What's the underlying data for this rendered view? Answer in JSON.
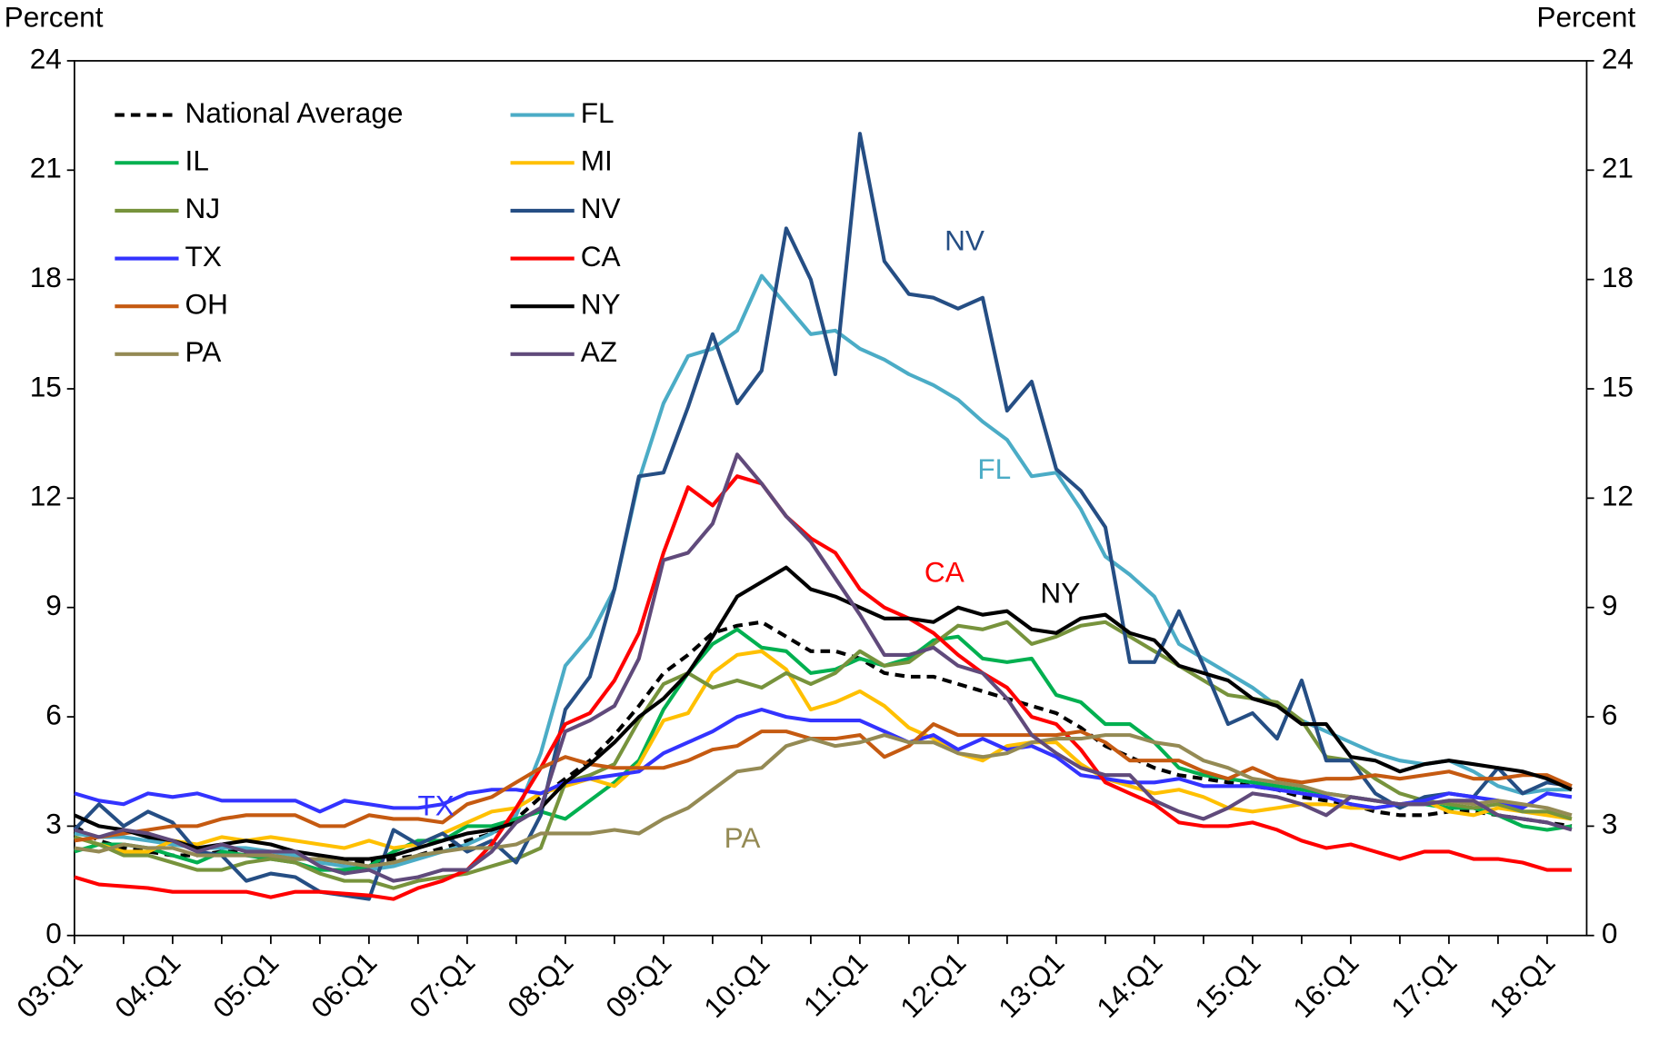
{
  "chart_data": {
    "type": "line",
    "y_label": "Percent",
    "y2_label": "Percent",
    "ylim": [
      0,
      24
    ],
    "yticks": [
      0,
      3,
      6,
      9,
      12,
      15,
      18,
      21,
      24
    ],
    "y2lim": [
      0,
      24
    ],
    "y2ticks": [
      0,
      3,
      6,
      9,
      12,
      15,
      18,
      21,
      24
    ],
    "grid": false,
    "legend": "upper left",
    "categories": [
      "03:Q1",
      null,
      null,
      null,
      "04:Q1",
      null,
      null,
      null,
      "05:Q1",
      null,
      null,
      null,
      "06:Q1",
      null,
      null,
      null,
      "07:Q1",
      null,
      null,
      null,
      "08:Q1",
      null,
      null,
      null,
      "09:Q1",
      null,
      null,
      null,
      "10:Q1",
      null,
      null,
      null,
      "11:Q1",
      null,
      null,
      null,
      "12:Q1",
      null,
      null,
      null,
      "13:Q1",
      null,
      null,
      null,
      "14:Q1",
      null,
      null,
      null,
      "15:Q1",
      null,
      null,
      null,
      "16:Q1",
      null,
      null,
      null,
      "17:Q1",
      null,
      null,
      null,
      "18:Q1",
      null
    ],
    "series": [
      {
        "name": "National Average",
        "color": "#000000",
        "dashed": true,
        "values": [
          3.0,
          2.6,
          2.4,
          2.3,
          2.2,
          2.2,
          2.3,
          2.3,
          2.2,
          2.1,
          2.1,
          2.0,
          2.0,
          2.1,
          2.2,
          2.4,
          2.6,
          2.8,
          3.2,
          3.8,
          4.3,
          4.8,
          5.5,
          6.3,
          7.2,
          7.7,
          8.3,
          8.5,
          8.6,
          8.2,
          7.8,
          7.8,
          7.6,
          7.2,
          7.1,
          7.1,
          6.9,
          6.7,
          6.5,
          6.3,
          6.1,
          5.7,
          5.2,
          4.9,
          4.6,
          4.4,
          4.3,
          4.2,
          4.1,
          4.0,
          3.8,
          3.7,
          3.6,
          3.4,
          3.3,
          3.3,
          3.4,
          3.4,
          3.3,
          3.2,
          3.1,
          3.0
        ]
      },
      {
        "name": "FL",
        "color": "#4bacc6",
        "values": [
          2.8,
          2.7,
          2.7,
          2.6,
          2.5,
          2.4,
          2.4,
          2.4,
          2.3,
          2.2,
          2.0,
          1.9,
          1.8,
          1.9,
          2.1,
          2.3,
          2.5,
          2.8,
          3.3,
          5.0,
          7.4,
          8.2,
          9.5,
          12.5,
          14.6,
          15.9,
          16.1,
          16.6,
          18.1,
          17.3,
          16.5,
          16.6,
          16.1,
          15.8,
          15.4,
          15.1,
          14.7,
          14.1,
          13.6,
          12.6,
          12.7,
          11.7,
          10.4,
          9.9,
          9.3,
          8.0,
          7.6,
          7.2,
          6.8,
          6.3,
          5.9,
          5.6,
          5.3,
          5.0,
          4.8,
          4.7,
          4.8,
          4.5,
          4.1,
          3.9,
          4.0,
          4.0
        ]
      },
      {
        "name": "IL",
        "color": "#00b050",
        "values": [
          2.3,
          2.5,
          2.5,
          2.4,
          2.2,
          2.0,
          2.3,
          2.2,
          2.1,
          2.0,
          1.8,
          1.8,
          1.9,
          2.3,
          2.6,
          2.6,
          3.0,
          3.0,
          3.2,
          3.4,
          3.2,
          3.7,
          4.2,
          4.8,
          6.2,
          7.2,
          8.0,
          8.4,
          7.9,
          7.8,
          7.2,
          7.3,
          7.6,
          7.4,
          7.6,
          8.1,
          8.2,
          7.6,
          7.5,
          7.6,
          6.6,
          6.4,
          5.8,
          5.8,
          5.3,
          4.6,
          4.4,
          4.3,
          4.2,
          4.1,
          4.0,
          3.9,
          3.8,
          3.7,
          3.6,
          3.6,
          3.5,
          3.5,
          3.3,
          3.0,
          2.9,
          3.0
        ]
      },
      {
        "name": "MI",
        "color": "#ffc000",
        "values": [
          2.7,
          2.5,
          2.3,
          2.3,
          2.6,
          2.5,
          2.7,
          2.6,
          2.7,
          2.6,
          2.5,
          2.4,
          2.6,
          2.4,
          2.5,
          2.8,
          3.1,
          3.4,
          3.5,
          3.9,
          4.1,
          4.3,
          4.1,
          4.7,
          5.9,
          6.1,
          7.2,
          7.7,
          7.8,
          7.3,
          6.2,
          6.4,
          6.7,
          6.3,
          5.7,
          5.4,
          5.0,
          4.8,
          5.2,
          5.3,
          5.3,
          4.7,
          4.3,
          4.1,
          3.9,
          4.0,
          3.8,
          3.5,
          3.4,
          3.5,
          3.6,
          3.6,
          3.5,
          3.5,
          3.6,
          3.7,
          3.4,
          3.3,
          3.5,
          3.4,
          3.3,
          3.2
        ]
      },
      {
        "name": "NJ",
        "color": "#77933c",
        "values": [
          2.7,
          2.5,
          2.2,
          2.2,
          2.0,
          1.8,
          1.8,
          2.0,
          2.1,
          2.0,
          1.7,
          1.5,
          1.5,
          1.3,
          1.5,
          1.6,
          1.7,
          1.9,
          2.1,
          2.4,
          4.2,
          4.4,
          4.7,
          5.9,
          6.9,
          7.2,
          6.8,
          7.0,
          6.8,
          7.2,
          6.9,
          7.2,
          7.8,
          7.4,
          7.5,
          8.0,
          8.5,
          8.4,
          8.6,
          8.0,
          8.2,
          8.5,
          8.6,
          8.2,
          7.8,
          7.4,
          7.0,
          6.6,
          6.5,
          6.4,
          5.9,
          4.9,
          4.8,
          4.3,
          3.9,
          3.7,
          3.6,
          3.5,
          3.6,
          3.4,
          3.4,
          3.2
        ]
      },
      {
        "name": "NV",
        "color": "#254e84",
        "values": [
          2.9,
          3.6,
          3.0,
          3.4,
          3.1,
          2.3,
          2.2,
          1.5,
          1.7,
          1.6,
          1.2,
          1.1,
          1.0,
          2.9,
          2.5,
          2.8,
          2.3,
          2.6,
          2.0,
          3.3,
          6.2,
          7.1,
          9.5,
          12.6,
          12.7,
          14.5,
          16.5,
          14.6,
          15.5,
          19.4,
          18.0,
          15.4,
          22.0,
          18.5,
          17.6,
          17.5,
          17.2,
          17.5,
          14.4,
          15.2,
          12.8,
          12.2,
          11.2,
          7.5,
          7.5,
          8.9,
          7.4,
          5.8,
          6.1,
          5.4,
          7.0,
          4.8,
          4.8,
          3.9,
          3.5,
          3.8,
          3.9,
          3.8,
          4.6,
          3.9,
          4.2,
          4.1
        ]
      },
      {
        "name": "TX",
        "color": "#3333ff",
        "values": [
          3.9,
          3.7,
          3.6,
          3.9,
          3.8,
          3.9,
          3.7,
          3.7,
          3.7,
          3.7,
          3.4,
          3.7,
          3.6,
          3.5,
          3.5,
          3.6,
          3.9,
          4.0,
          4.0,
          3.9,
          4.2,
          4.3,
          4.4,
          4.5,
          5.0,
          5.3,
          5.6,
          6.0,
          6.2,
          6.0,
          5.9,
          5.9,
          5.9,
          5.6,
          5.3,
          5.5,
          5.1,
          5.4,
          5.1,
          5.2,
          4.9,
          4.4,
          4.3,
          4.2,
          4.2,
          4.3,
          4.1,
          4.1,
          4.1,
          4.0,
          3.9,
          3.8,
          3.6,
          3.5,
          3.6,
          3.7,
          3.9,
          3.8,
          3.7,
          3.5,
          3.9,
          3.8
        ]
      },
      {
        "name": "CA",
        "color": "#ff0000",
        "values": [
          1.6,
          1.4,
          1.35,
          1.3,
          1.2,
          1.2,
          1.2,
          1.2,
          1.05,
          1.2,
          1.2,
          1.15,
          1.1,
          1.0,
          1.3,
          1.5,
          1.8,
          2.5,
          3.5,
          4.6,
          5.8,
          6.1,
          7.0,
          8.3,
          10.5,
          12.3,
          11.8,
          12.6,
          12.4,
          11.5,
          10.9,
          10.5,
          9.5,
          9.0,
          8.7,
          8.3,
          7.7,
          7.2,
          6.8,
          6.0,
          5.8,
          5.1,
          4.2,
          3.9,
          3.6,
          3.1,
          3.0,
          3.0,
          3.1,
          2.9,
          2.6,
          2.4,
          2.5,
          2.3,
          2.1,
          2.3,
          2.3,
          2.1,
          2.1,
          2.0,
          1.8,
          1.8
        ]
      },
      {
        "name": "OH",
        "color": "#c55a11",
        "values": [
          2.6,
          2.7,
          2.8,
          2.9,
          3.0,
          3.0,
          3.2,
          3.3,
          3.3,
          3.3,
          3.0,
          3.0,
          3.3,
          3.2,
          3.2,
          3.1,
          3.6,
          3.8,
          4.2,
          4.6,
          4.9,
          4.7,
          4.6,
          4.6,
          4.6,
          4.8,
          5.1,
          5.2,
          5.6,
          5.6,
          5.4,
          5.4,
          5.5,
          4.9,
          5.2,
          5.8,
          5.5,
          5.5,
          5.5,
          5.5,
          5.5,
          5.6,
          5.3,
          4.8,
          4.8,
          4.8,
          4.5,
          4.3,
          4.6,
          4.3,
          4.2,
          4.3,
          4.3,
          4.4,
          4.3,
          4.4,
          4.5,
          4.3,
          4.3,
          4.4,
          4.4,
          4.1
        ]
      },
      {
        "name": "NY",
        "color": "#000000",
        "values": [
          3.3,
          3.0,
          2.9,
          2.7,
          2.6,
          2.4,
          2.5,
          2.6,
          2.5,
          2.3,
          2.2,
          2.1,
          2.1,
          2.2,
          2.4,
          2.6,
          2.8,
          2.9,
          3.1,
          3.5,
          4.2,
          4.7,
          5.3,
          6.0,
          6.5,
          7.2,
          8.2,
          9.3,
          9.7,
          10.1,
          9.5,
          9.3,
          9.0,
          8.7,
          8.7,
          8.6,
          9.0,
          8.8,
          8.9,
          8.4,
          8.3,
          8.7,
          8.8,
          8.3,
          8.1,
          7.4,
          7.2,
          7.0,
          6.5,
          6.3,
          5.8,
          5.8,
          4.9,
          4.8,
          4.5,
          4.7,
          4.8,
          4.7,
          4.6,
          4.5,
          4.3,
          4.0
        ]
      },
      {
        "name": "PA",
        "color": "#948a54",
        "values": [
          2.4,
          2.3,
          2.5,
          2.4,
          2.4,
          2.2,
          2.2,
          2.2,
          2.2,
          2.1,
          2.1,
          2.0,
          1.9,
          2.0,
          2.2,
          2.3,
          2.4,
          2.4,
          2.5,
          2.8,
          2.8,
          2.8,
          2.9,
          2.8,
          3.2,
          3.5,
          4.0,
          4.5,
          4.6,
          5.2,
          5.4,
          5.2,
          5.3,
          5.5,
          5.3,
          5.3,
          5.0,
          4.9,
          5.0,
          5.3,
          5.4,
          5.4,
          5.5,
          5.5,
          5.3,
          5.2,
          4.8,
          4.6,
          4.3,
          4.2,
          4.1,
          3.9,
          3.8,
          3.7,
          3.6,
          3.6,
          3.7,
          3.6,
          3.7,
          3.6,
          3.5,
          3.3
        ]
      },
      {
        "name": "AZ",
        "color": "#604a7b",
        "values": [
          2.9,
          2.7,
          2.9,
          2.8,
          2.6,
          2.3,
          2.5,
          2.3,
          2.3,
          2.3,
          1.9,
          1.7,
          1.8,
          1.5,
          1.6,
          1.8,
          1.8,
          2.3,
          3.1,
          3.5,
          5.6,
          5.9,
          6.3,
          7.6,
          10.3,
          10.5,
          11.3,
          13.2,
          12.4,
          11.5,
          10.8,
          9.8,
          8.8,
          7.7,
          7.7,
          7.9,
          7.4,
          7.2,
          6.5,
          5.5,
          5.0,
          4.6,
          4.4,
          4.4,
          3.7,
          3.4,
          3.2,
          3.5,
          3.9,
          3.8,
          3.6,
          3.3,
          3.8,
          3.7,
          3.6,
          3.6,
          3.7,
          3.7,
          3.3,
          3.2,
          3.1,
          2.9
        ]
      }
    ],
    "annotations": [
      {
        "text": "NV",
        "color": "#254e84"
      },
      {
        "text": "FL",
        "color": "#4bacc6"
      },
      {
        "text": "CA",
        "color": "#ff0000"
      },
      {
        "text": "NY",
        "color": "#000000"
      },
      {
        "text": "TX",
        "color": "#3333ff"
      },
      {
        "text": "PA",
        "color": "#948a54"
      }
    ]
  }
}
